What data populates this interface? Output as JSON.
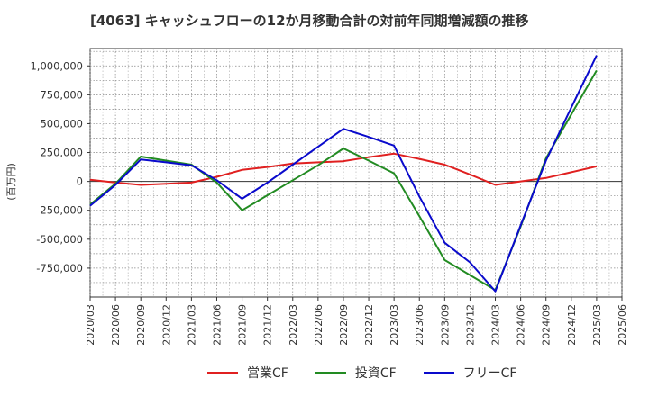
{
  "chart_data": {
    "type": "line",
    "title": "[4063]  キャッシュフローの12か月移動合計の対前年同期増減額の推移",
    "ylabel": "(百万円)",
    "xlabel": "",
    "ylim": [
      -1000000,
      1150000
    ],
    "yticks": [
      1000000,
      750000,
      500000,
      250000,
      0,
      -250000,
      -500000,
      -750000
    ],
    "ytick_labels": [
      "1,000,000",
      "750,000",
      "500,000",
      "250,000",
      "0",
      "-250,000",
      "-500,000",
      "-750,000"
    ],
    "categories": [
      "2020/03",
      "2020/06",
      "2020/09",
      "2020/12",
      "2021/03",
      "2021/06",
      "2021/09",
      "2021/12",
      "2022/03",
      "2022/06",
      "2022/09",
      "2022/12",
      "2023/03",
      "2023/06",
      "2023/09",
      "2023/12",
      "2024/03",
      "2024/06",
      "2024/09",
      "2024/12",
      "2025/03",
      "2025/06"
    ],
    "grid": true,
    "legend_position": "bottom",
    "series": [
      {
        "name": "営業CF",
        "color": "#e02020",
        "values": [
          15000,
          -10000,
          -30000,
          -20000,
          -10000,
          40000,
          100000,
          125000,
          155000,
          165000,
          175000,
          210000,
          240000,
          195000,
          145000,
          60000,
          -30000,
          0,
          30000,
          80000,
          130000,
          null
        ]
      },
      {
        "name": "投資CF",
        "color": "#228b22",
        "values": [
          -200000,
          -20000,
          215000,
          180000,
          145000,
          -10000,
          -250000,
          -120000,
          10000,
          140000,
          285000,
          180000,
          70000,
          -300000,
          -680000,
          -810000,
          -940000,
          -390000,
          200000,
          580000,
          960000,
          null
        ]
      },
      {
        "name": "フリーCF",
        "color": "#0a0acc",
        "values": [
          -210000,
          -30000,
          190000,
          165000,
          140000,
          10000,
          -150000,
          -10000,
          145000,
          300000,
          455000,
          385000,
          310000,
          -130000,
          -530000,
          -700000,
          -950000,
          -380000,
          180000,
          640000,
          1090000,
          null
        ]
      }
    ]
  }
}
